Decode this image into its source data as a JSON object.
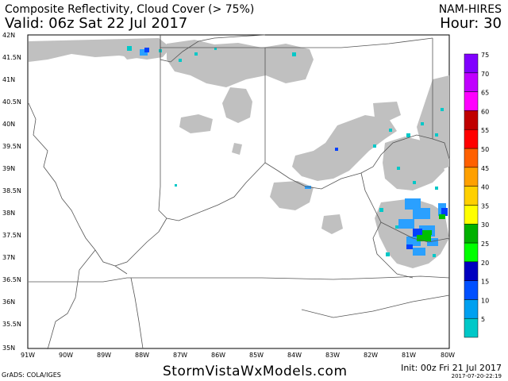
{
  "header": {
    "title": "Composite Reflectivity, Cloud Cover (> 75%)",
    "valid": "Valid: 06z Sat 22 Jul 2017",
    "model": "NAM-HIRES",
    "hour": "Hour: 30"
  },
  "map": {
    "lat_labels": [
      "42N",
      "41.5N",
      "41N",
      "40.5N",
      "40N",
      "39.5N",
      "39N",
      "38.5N",
      "38N",
      "37.5N",
      "37N",
      "36.5N",
      "36N",
      "35.5N",
      "35N"
    ],
    "lon_labels": [
      "91W",
      "90W",
      "89W",
      "88W",
      "87W",
      "86W",
      "85W",
      "84W",
      "83W",
      "82W",
      "81W",
      "80W"
    ],
    "colors": {
      "cloud": "#c0c0c0",
      "border": "#555555",
      "dbz_5": "#00c8c8",
      "dbz_10": "#2aa0ff",
      "dbz_15": "#0040ff",
      "dbz_20": "#00c000"
    }
  },
  "colorbar": {
    "levels": [
      {
        "label": "5",
        "color": "#00c8c8"
      },
      {
        "label": "10",
        "color": "#00a0f0"
      },
      {
        "label": "15",
        "color": "#0050ff"
      },
      {
        "label": "20",
        "color": "#0000c0"
      },
      {
        "label": "25",
        "color": "#00ff00"
      },
      {
        "label": "30",
        "color": "#00b000"
      },
      {
        "label": "35",
        "color": "#ffff00"
      },
      {
        "label": "40",
        "color": "#ffd000"
      },
      {
        "label": "45",
        "color": "#ffa000"
      },
      {
        "label": "50",
        "color": "#ff6000"
      },
      {
        "label": "55",
        "color": "#ff0000"
      },
      {
        "label": "60",
        "color": "#c00000"
      },
      {
        "label": "65",
        "color": "#ff00ff"
      },
      {
        "label": "70",
        "color": "#c000ff"
      },
      {
        "label": "75",
        "color": "#8000ff"
      }
    ]
  },
  "footer": {
    "grads": "GrADS: COLA/IGES",
    "site": "StormVistaWxModels.com",
    "init": "Init: 00z Fri 21 Jul 2017",
    "stamp": "2017-07-20-22:19"
  }
}
